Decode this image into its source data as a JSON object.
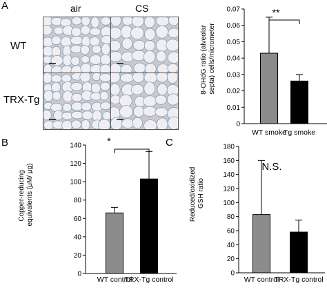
{
  "panels": {
    "a": {
      "letter": "A",
      "micrograph": {
        "columns": [
          "air",
          "CS"
        ],
        "rows": [
          "WT",
          "TRX-Tg"
        ],
        "tile_colors": {
          "background": "#cfc6cc",
          "stroke": "#7aa6c0",
          "alveoli": "#f1eef1"
        }
      },
      "chart": {
        "ylabel": [
          "8-OHdG ratio (alveolar",
          "septa) cells/micrometer"
        ],
        "significance": "**"
      }
    },
    "b": {
      "letter": "B",
      "chart": {
        "ylabel": [
          "Copper-reducing",
          "equivalents (μM/ μg)"
        ],
        "significance": "*"
      }
    },
    "c": {
      "letter": "C",
      "chart": {
        "ylabel": [
          "Reduced/oxidized",
          "GSH ratio"
        ],
        "annotation": "N.S."
      }
    }
  },
  "chart_data": [
    {
      "id": "A",
      "type": "bar",
      "categories": [
        "WT smoke",
        "Tg smoke"
      ],
      "values": [
        0.043,
        0.026
      ],
      "errors": [
        0.022,
        0.004
      ],
      "colors": [
        "#8c8c8c",
        "#000000"
      ],
      "ylim": [
        0,
        0.07
      ],
      "yticks": [
        "0",
        "0.01",
        "0.02",
        "0.03",
        "0.04",
        "0.05",
        "0.06",
        "0.07"
      ],
      "ylabel": "8-OHdG ratio (alveolar septa) cells/micrometer"
    },
    {
      "id": "B",
      "type": "bar",
      "categories": [
        "WT control",
        "TRX-Tg control"
      ],
      "values": [
        66,
        103
      ],
      "errors": [
        6,
        30
      ],
      "colors": [
        "#8c8c8c",
        "#000000"
      ],
      "ylim": [
        0,
        140
      ],
      "yticks": [
        "0",
        "20",
        "40",
        "60",
        "80",
        "100",
        "120",
        "140"
      ],
      "ylabel": "Copper-reducing equivalents (μM/ μg)"
    },
    {
      "id": "C",
      "type": "bar",
      "categories": [
        "WT control",
        "TRX-Tg control"
      ],
      "values": [
        83,
        58
      ],
      "errors": [
        77,
        17
      ],
      "colors": [
        "#8c8c8c",
        "#000000"
      ],
      "ylim": [
        0,
        180
      ],
      "yticks": [
        "0",
        "20",
        "40",
        "60",
        "80",
        "100",
        "120",
        "140",
        "160",
        "180"
      ],
      "ylabel": "Reduced/oxidized GSH ratio"
    }
  ]
}
